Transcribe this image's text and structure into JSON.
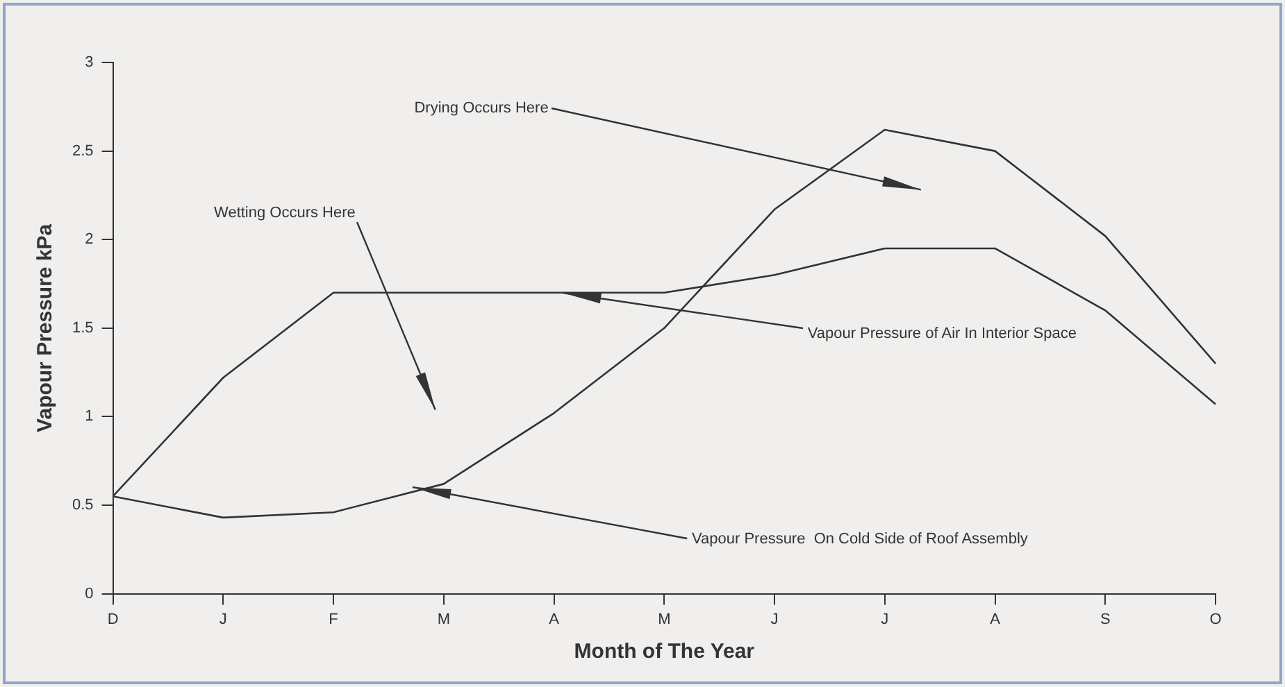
{
  "chart_data": {
    "type": "line",
    "xlabel": "Month of The Year",
    "ylabel": "Vapour Pressure kPa",
    "categories": [
      "D",
      "J",
      "F",
      "M",
      "A",
      "M",
      "J",
      "J",
      "A",
      "S",
      "O"
    ],
    "series": [
      {
        "name": "Vapour Pressure of Air In Interior Space",
        "color": "#333333",
        "values": [
          0.55,
          1.22,
          1.7,
          1.7,
          1.7,
          1.7,
          1.8,
          1.95,
          1.95,
          1.6,
          1.07
        ]
      },
      {
        "name": "Vapour Pressure  On Cold Side of Roof Assembly",
        "color": "#333333",
        "values": [
          0.55,
          0.43,
          0.46,
          0.62,
          1.02,
          1.5,
          2.17,
          2.62,
          2.5,
          2.02,
          1.3
        ]
      }
    ],
    "annotations": [
      "Wetting Occurs Here",
      "Drying Occurs Here"
    ],
    "ylim": [
      0,
      3
    ],
    "yticks": [
      0,
      0.5,
      1,
      1.5,
      2,
      2.5,
      3
    ],
    "grid": false,
    "legend": false,
    "marker": "none",
    "line_style": "solid"
  }
}
